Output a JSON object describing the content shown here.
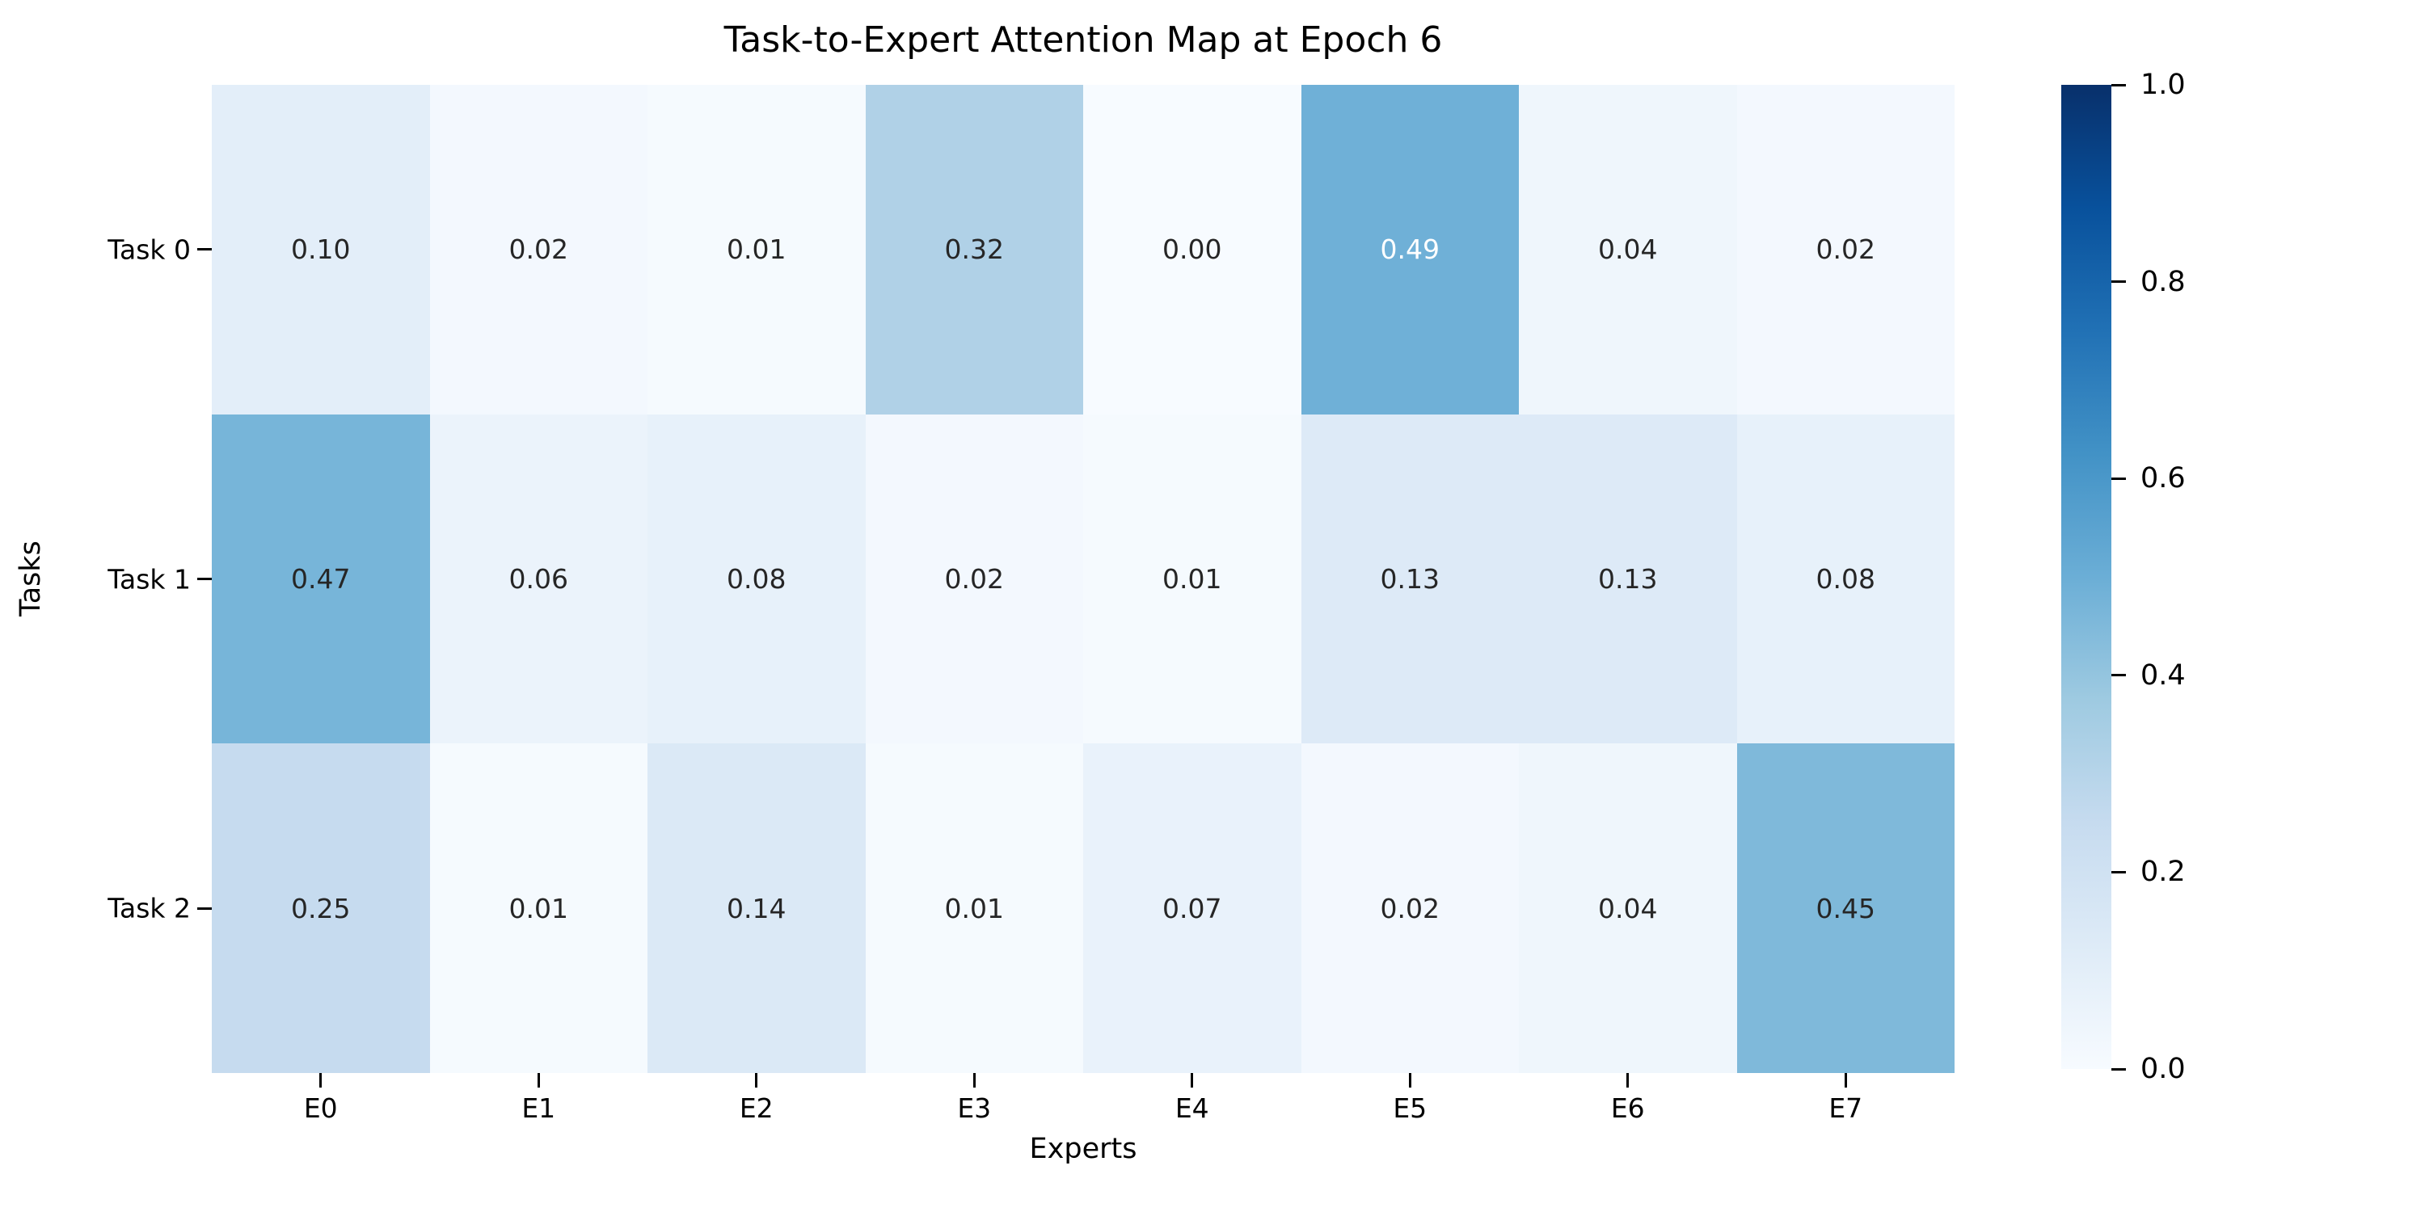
{
  "chart_data": {
    "type": "heatmap",
    "title": "Task-to-Expert Attention Map at Epoch 6",
    "xlabel": "Experts",
    "ylabel": "Tasks",
    "x_labels": [
      "E0",
      "E1",
      "E2",
      "E3",
      "E4",
      "E5",
      "E6",
      "E7"
    ],
    "y_labels": [
      "Task 0",
      "Task 1",
      "Task 2"
    ],
    "values": [
      [
        0.1,
        0.02,
        0.01,
        0.32,
        0.0,
        0.49,
        0.04,
        0.02
      ],
      [
        0.47,
        0.06,
        0.08,
        0.02,
        0.01,
        0.13,
        0.13,
        0.08
      ],
      [
        0.25,
        0.01,
        0.14,
        0.01,
        0.07,
        0.02,
        0.04,
        0.45
      ]
    ],
    "annotation_precision": 2,
    "vmin": 0.0,
    "vmax": 1.0,
    "colormap": "Blues",
    "colormap_anchors": {
      "positions": [
        0,
        0.125,
        0.25,
        0.375,
        0.5,
        0.625,
        0.75,
        0.875,
        1.0
      ],
      "colors": [
        "#f7fbff",
        "#deebf7",
        "#c6dbef",
        "#9ecae1",
        "#6baed6",
        "#4292c6",
        "#2171b5",
        "#08519c",
        "#08306b"
      ]
    },
    "colorbar_ticks": [
      0.0,
      0.2,
      0.4,
      0.6,
      0.8,
      1.0
    ],
    "colorbar_tick_precision": 1,
    "annotation_dark_color": "#262626",
    "annotation_light_color": "#ffffff",
    "grid": false,
    "legend_position": "colorbar-right"
  }
}
